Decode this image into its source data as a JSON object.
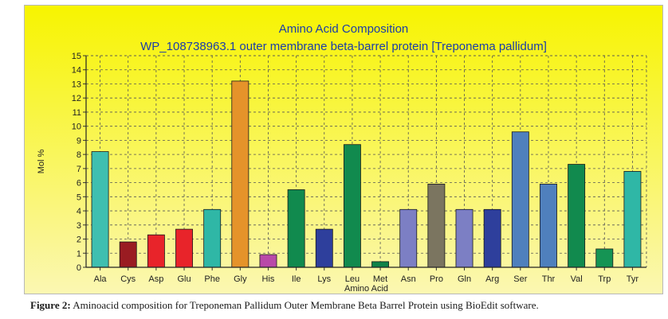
{
  "chart_data": {
    "type": "bar",
    "title": "Amino Acid Composition",
    "subtitle": "WP_108738963.1 outer membrane beta-barrel protein [Treponema pallidum]",
    "xlabel": "Amino Acid",
    "ylabel": "Mol %",
    "ylim": [
      0,
      15
    ],
    "yticks": [
      "0",
      "1",
      "2",
      "3",
      "4",
      "5",
      "6",
      "7",
      "8",
      "9",
      "10",
      "11",
      "12",
      "13",
      "14",
      "15"
    ],
    "grid": true,
    "categories": [
      "Ala",
      "Cys",
      "Asp",
      "Glu",
      "Phe",
      "Gly",
      "His",
      "Ile",
      "Lys",
      "Leu",
      "Met",
      "Asn",
      "Pro",
      "Gln",
      "Arg",
      "Ser",
      "Thr",
      "Val",
      "Trp",
      "Tyr"
    ],
    "values": [
      8.2,
      1.8,
      2.3,
      2.7,
      4.1,
      13.2,
      0.9,
      5.5,
      2.7,
      8.7,
      0.4,
      4.1,
      5.9,
      4.1,
      4.1,
      9.6,
      5.9,
      7.3,
      1.3,
      6.8
    ],
    "colors": [
      "#3fbfb0",
      "#9a1c22",
      "#e8242a",
      "#e8242a",
      "#2fb7a6",
      "#e5932a",
      "#b94aa8",
      "#118a4e",
      "#2e3f9c",
      "#118a4e",
      "#0f8248",
      "#7c7fc4",
      "#7b7560",
      "#7c7fc4",
      "#2e3f9c",
      "#4f80bd",
      "#4f80bd",
      "#118a4e",
      "#159454",
      "#2fb7a6"
    ],
    "background_colors": {
      "panel_top": "#f7f400",
      "panel_bottom": "#fbf7b2",
      "title_color": "#1b3da8"
    }
  },
  "caption": {
    "label": "Figure 2:",
    "text": " Aminoacid composition for Treponeman Pallidum Outer Membrane Beta Barrel Protein using BioEdit software."
  }
}
